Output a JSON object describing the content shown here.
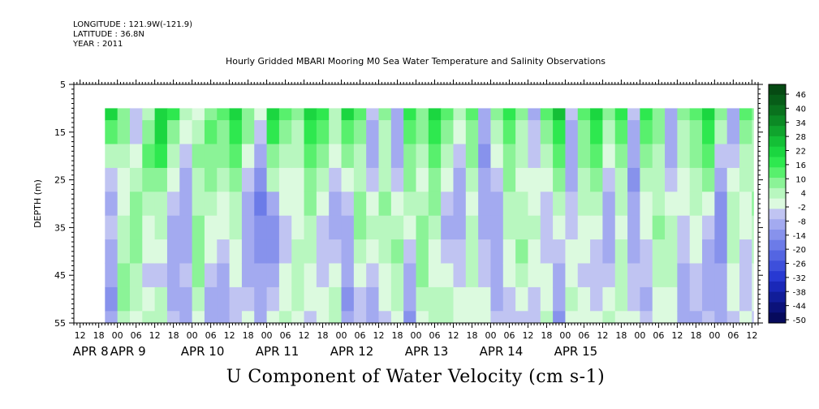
{
  "header": {
    "longitude": "LONGITUDE : 121.9W(-121.9)",
    "latitude": "LATITUDE : 36.8N",
    "year": "YEAR : 2011"
  },
  "title": "Hourly Gridded MBARI Mooring M0 Sea Water Temperature and Salinity Observations",
  "bottom_title": "U Component of Water Velocity (cm s-1)",
  "chart_data": {
    "type": "heatmap",
    "xlabel": "",
    "ylabel": "DEPTH (m)",
    "y_ticks": [
      5,
      15,
      25,
      35,
      45,
      55
    ],
    "ylim": [
      55,
      5
    ],
    "data_depth_range": [
      10,
      55
    ],
    "x_tick_labels": [
      "12",
      "18",
      "00",
      "06",
      "12",
      "18",
      "00",
      "06",
      "12",
      "18",
      "00",
      "06",
      "12",
      "18",
      "00",
      "06",
      "12",
      "18",
      "00",
      "06",
      "12",
      "18",
      "00",
      "06",
      "12",
      "18",
      "00",
      "06",
      "12",
      "18",
      "00",
      "06",
      "12",
      "18",
      "00",
      "06",
      "12"
    ],
    "x_tick_hours": [
      -12,
      -6,
      0,
      6,
      12,
      18,
      24,
      30,
      36,
      42,
      48,
      54,
      60,
      66,
      72,
      78,
      84,
      90,
      96,
      102,
      108,
      114,
      120,
      126,
      132,
      138,
      144,
      150,
      156,
      162,
      168,
      174,
      180,
      186,
      192,
      198,
      204
    ],
    "date_labels": [
      {
        "label": "APR  8",
        "hour": -12
      },
      {
        "label": "APR  9",
        "hour": 0
      },
      {
        "label": "APR 10",
        "hour": 24
      },
      {
        "label": "APR 11",
        "hour": 48
      },
      {
        "label": "APR 12",
        "hour": 72
      },
      {
        "label": "APR 13",
        "hour": 96
      },
      {
        "label": "APR 14",
        "hour": 120
      },
      {
        "label": "APR 15",
        "hour": 144
      }
    ],
    "x_range_hours": [
      -14,
      206
    ],
    "data_start_hour": -4,
    "colorbar_levels": [
      46,
      40,
      34,
      28,
      22,
      16,
      10,
      4,
      -2,
      -8,
      -14,
      -20,
      -26,
      -32,
      -38,
      -44,
      -50
    ],
    "colorbar_colors": [
      "#064a13",
      "#075d18",
      "#0a721e",
      "#0c8a25",
      "#10a42d",
      "#14bf36",
      "#1bd640",
      "#2ee84f",
      "#58f06d",
      "#8bf397",
      "#b8f7bf",
      "#dcfadf",
      "#c0c4f2",
      "#a3aaf0",
      "#8792ec",
      "#6c7be8",
      "#5465e2",
      "#3d4fdb",
      "#2839d2",
      "#1a28b8",
      "#111d99",
      "#0b127a",
      "#060a5c"
    ],
    "colorbar_range": [
      -50,
      52
    ],
    "columns": [
      {
        "hour": -4,
        "values": [
          22,
          14,
          6,
          -2,
          -8,
          -4,
          -10,
          -6,
          -12,
          -8
        ]
      },
      {
        "hour": 0,
        "values": [
          12,
          8,
          4,
          0,
          2,
          4,
          6,
          8,
          10,
          6
        ]
      },
      {
        "hour": 4,
        "values": [
          -2,
          -4,
          2,
          6,
          10,
          12,
          8,
          4,
          6,
          2
        ]
      },
      {
        "hour": 8,
        "values": [
          4,
          8,
          14,
          10,
          6,
          2,
          0,
          -4,
          0,
          4
        ]
      },
      {
        "hour": 12,
        "values": [
          24,
          22,
          18,
          12,
          6,
          4,
          0,
          -2,
          4,
          6
        ]
      },
      {
        "hour": 16,
        "values": [
          18,
          12,
          6,
          2,
          -2,
          -6,
          -8,
          -10,
          -6,
          -2
        ]
      },
      {
        "hour": 20,
        "values": [
          6,
          2,
          -4,
          -8,
          -10,
          -8,
          -6,
          -4,
          -8,
          -10
        ]
      },
      {
        "hour": 24,
        "values": [
          2,
          4,
          8,
          6,
          4,
          8,
          12,
          10,
          6,
          0
        ]
      },
      {
        "hour": 28,
        "values": [
          10,
          14,
          10,
          8,
          4,
          2,
          0,
          -2,
          -6,
          -10
        ]
      },
      {
        "hour": 32,
        "values": [
          16,
          12,
          8,
          4,
          2,
          0,
          -4,
          -6,
          -8,
          -6
        ]
      },
      {
        "hour": 36,
        "values": [
          22,
          18,
          14,
          10,
          6,
          4,
          2,
          0,
          -4,
          -2
        ]
      },
      {
        "hour": 40,
        "values": [
          12,
          8,
          2,
          -4,
          -8,
          -10,
          -8,
          -6,
          -4,
          2
        ]
      },
      {
        "hour": 44,
        "values": [
          2,
          -4,
          -10,
          -14,
          -16,
          -14,
          -12,
          -10,
          -8,
          -6
        ]
      },
      {
        "hour": 48,
        "values": [
          24,
          18,
          12,
          6,
          -6,
          -14,
          -12,
          -8,
          -4,
          0
        ]
      },
      {
        "hour": 52,
        "values": [
          16,
          10,
          6,
          2,
          0,
          -4,
          -2,
          0,
          2,
          4
        ]
      },
      {
        "hour": 56,
        "values": [
          8,
          6,
          4,
          2,
          0,
          2,
          4,
          6,
          4,
          2
        ]
      },
      {
        "hour": 60,
        "values": [
          22,
          20,
          16,
          12,
          8,
          6,
          4,
          2,
          0,
          -2
        ]
      },
      {
        "hour": 64,
        "values": [
          18,
          14,
          10,
          6,
          2,
          -2,
          -4,
          -2,
          0,
          2
        ]
      },
      {
        "hour": 68,
        "values": [
          6,
          4,
          0,
          -4,
          -8,
          -6,
          -2,
          2,
          4,
          6
        ]
      },
      {
        "hour": 72,
        "values": [
          22,
          16,
          8,
          2,
          -2,
          -6,
          -8,
          -10,
          -12,
          -10
        ]
      },
      {
        "hour": 76,
        "values": [
          14,
          10,
          6,
          4,
          8,
          10,
          6,
          2,
          -2,
          -4
        ]
      },
      {
        "hour": 80,
        "values": [
          -4,
          -8,
          -6,
          -2,
          2,
          4,
          0,
          -4,
          -6,
          -8
        ]
      },
      {
        "hour": 84,
        "values": [
          8,
          6,
          4,
          6,
          8,
          6,
          4,
          2,
          0,
          -2
        ]
      },
      {
        "hour": 88,
        "values": [
          -8,
          -10,
          -6,
          -2,
          2,
          6,
          8,
          6,
          4,
          2
        ]
      },
      {
        "hour": 92,
        "values": [
          20,
          16,
          12,
          8,
          4,
          0,
          -4,
          -8,
          -10,
          -12
        ]
      },
      {
        "hour": 96,
        "values": [
          12,
          8,
          4,
          2,
          6,
          10,
          12,
          8,
          4,
          0
        ]
      },
      {
        "hour": 100,
        "values": [
          24,
          20,
          16,
          12,
          8,
          4,
          2,
          0,
          4,
          6
        ]
      },
      {
        "hour": 104,
        "values": [
          14,
          10,
          6,
          2,
          -2,
          -6,
          -4,
          0,
          4,
          6
        ]
      },
      {
        "hour": 108,
        "values": [
          4,
          2,
          -2,
          -6,
          -8,
          -6,
          -4,
          -2,
          0,
          2
        ]
      },
      {
        "hour": 112,
        "values": [
          16,
          12,
          8,
          4,
          2,
          4,
          6,
          4,
          2,
          0
        ]
      },
      {
        "hour": 116,
        "values": [
          -6,
          -10,
          -12,
          -10,
          -8,
          -6,
          -4,
          -2,
          0,
          2
        ]
      },
      {
        "hour": 120,
        "values": [
          10,
          6,
          2,
          -2,
          -6,
          -8,
          -10,
          -8,
          -6,
          -4
        ]
      },
      {
        "hour": 124,
        "values": [
          18,
          14,
          10,
          8,
          6,
          4,
          2,
          0,
          -2,
          -4
        ]
      },
      {
        "hour": 128,
        "values": [
          8,
          6,
          4,
          2,
          4,
          6,
          8,
          6,
          2,
          -2
        ]
      },
      {
        "hour": 132,
        "values": [
          -6,
          -4,
          -2,
          0,
          2,
          4,
          2,
          0,
          -2,
          -4
        ]
      },
      {
        "hour": 136,
        "values": [
          14,
          10,
          6,
          2,
          -2,
          -4,
          -2,
          0,
          2,
          4
        ]
      },
      {
        "hour": 140,
        "values": [
          26,
          20,
          14,
          8,
          4,
          0,
          -4,
          -8,
          -10,
          -12
        ]
      },
      {
        "hour": 144,
        "values": [
          -4,
          -6,
          -8,
          -6,
          -4,
          -2,
          0,
          2,
          4,
          2
        ]
      },
      {
        "hour": 148,
        "values": [
          14,
          10,
          8,
          6,
          4,
          2,
          0,
          -2,
          0,
          2
        ]
      },
      {
        "hour": 152,
        "values": [
          22,
          18,
          14,
          10,
          6,
          2,
          -2,
          -4,
          -2,
          0
        ]
      },
      {
        "hour": 156,
        "values": [
          8,
          4,
          0,
          -4,
          -8,
          -10,
          -8,
          -4,
          0,
          4
        ]
      },
      {
        "hour": 160,
        "values": [
          18,
          14,
          10,
          6,
          4,
          2,
          4,
          6,
          4,
          2
        ]
      },
      {
        "hour": 164,
        "values": [
          -2,
          -6,
          -10,
          -12,
          -10,
          -8,
          -6,
          -4,
          -2,
          0
        ]
      },
      {
        "hour": 168,
        "values": [
          20,
          14,
          8,
          4,
          2,
          0,
          -2,
          -4,
          -6,
          -4
        ]
      },
      {
        "hour": 172,
        "values": [
          10,
          8,
          6,
          4,
          6,
          8,
          6,
          4,
          2,
          0
        ]
      },
      {
        "hour": 176,
        "values": [
          -8,
          -10,
          -8,
          -4,
          0,
          4,
          6,
          4,
          2,
          0
        ]
      },
      {
        "hour": 180,
        "values": [
          8,
          6,
          4,
          2,
          0,
          -2,
          -4,
          -6,
          -8,
          -10
        ]
      },
      {
        "hour": 184,
        "values": [
          16,
          12,
          8,
          6,
          4,
          2,
          0,
          -2,
          -4,
          -6
        ]
      },
      {
        "hour": 188,
        "values": [
          24,
          20,
          14,
          8,
          2,
          -2,
          -6,
          -8,
          -6,
          -4
        ]
      },
      {
        "hour": 192,
        "values": [
          10,
          4,
          -2,
          -8,
          -12,
          -14,
          -12,
          -10,
          -8,
          -6
        ]
      },
      {
        "hour": 196,
        "values": [
          -8,
          -6,
          -2,
          2,
          4,
          6,
          4,
          2,
          0,
          -2
        ]
      },
      {
        "hour": 200,
        "values": [
          14,
          10,
          6,
          4,
          2,
          0,
          -2,
          -4,
          -2,
          0
        ]
      },
      {
        "hour": 204,
        "values": [
          8,
          6,
          4,
          6,
          8,
          6,
          4,
          2,
          0,
          -2
        ]
      }
    ],
    "column_depths": [
      10,
      15,
      20,
      25,
      30,
      35,
      40,
      45,
      50,
      55
    ]
  }
}
